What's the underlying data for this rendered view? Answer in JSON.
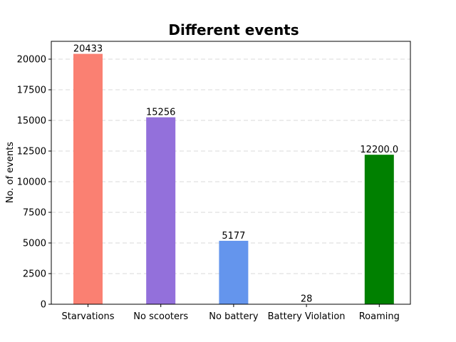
{
  "chart_data": {
    "type": "bar",
    "title": "Different events",
    "xlabel": "",
    "ylabel": "No. of events",
    "categories": [
      "Starvations",
      "No scooters",
      "No battery",
      "Battery Violation",
      "Roaming"
    ],
    "values": [
      20433,
      15256,
      5177,
      28,
      12200.0
    ],
    "data_labels": [
      "20433",
      "15256",
      "5177",
      "28",
      "12200.0"
    ],
    "colors": [
      "#fa8072",
      "#9370db",
      "#6495ed",
      "#9370db",
      "#008000"
    ],
    "ylim": [
      0,
      21454.65
    ],
    "yticks": [
      0,
      2500,
      5000,
      7500,
      10000,
      12500,
      15000,
      17500,
      20000
    ],
    "grid": {
      "axis": "y",
      "style": "dashed"
    },
    "legend": "none"
  }
}
